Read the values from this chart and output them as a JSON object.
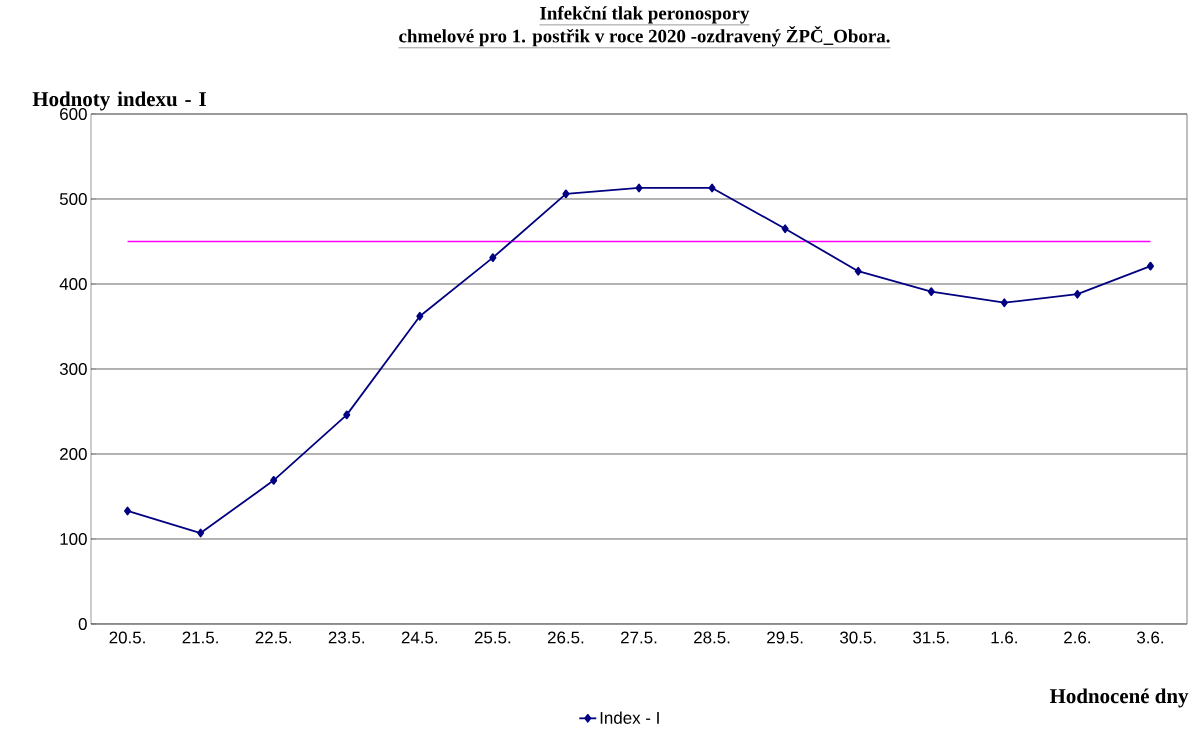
{
  "chart_data": {
    "type": "line",
    "title": "Infekční tlak peronospory",
    "subtitle": "chmelové pro 1. postřik v roce 2020 -ozdravený ŽPČ_Obora.",
    "xlabel": "Hodnocené dny",
    "ylabel": "Hodnoty indexu - I",
    "categories": [
      "20.5.",
      "21.5.",
      "22.5.",
      "23.5.",
      "24.5.",
      "25.5.",
      "26.5.",
      "27.5.",
      "28.5.",
      "29.5.",
      "30.5.",
      "31.5.",
      "1.6.",
      "2.6.",
      "3.6."
    ],
    "series": [
      {
        "name": "Index - I",
        "color": "#000080",
        "values": [
          133,
          107,
          169,
          246,
          362,
          431,
          506,
          513,
          513,
          465,
          415,
          391,
          378,
          388,
          421
        ]
      }
    ],
    "ylim": [
      0,
      600
    ],
    "yticks": [
      0,
      100,
      200,
      300,
      400,
      500,
      600
    ],
    "grid": "y",
    "legend": "bottom",
    "marker": "diamond",
    "line_style": "solid",
    "ref_lines": [
      {
        "axis": "y",
        "value": 450,
        "color": "#ff00ff"
      }
    ]
  }
}
